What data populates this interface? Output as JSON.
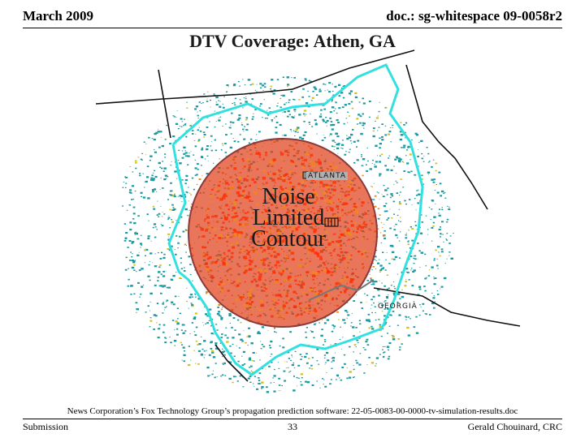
{
  "header": {
    "date": "March 2009",
    "doc_id": "doc.: sg-whitespace 09-0058r2"
  },
  "title": "DTV Coverage: Athen, GA",
  "map": {
    "city_label": "ATLANTA",
    "state_label": "GEORGIA",
    "contour_label_lines": [
      "Noise",
      "Limited",
      "Contour"
    ],
    "colors": {
      "contour_fill": "#e0401a",
      "contour_edge": "#8a3a3a",
      "strong_signal": "#ff2a00",
      "medium_signal": "#f08a1a",
      "weak_signal": "#1a9aa0",
      "border": "#33e0e0"
    }
  },
  "caption": "News Corporation’s Fox Technology Group’s propagation prediction software: 22-05-0083-00-0000-tv-simulation-results.doc",
  "footer": {
    "left": "Submission",
    "page": "33",
    "right": "Gerald Chouinard, CRC"
  }
}
